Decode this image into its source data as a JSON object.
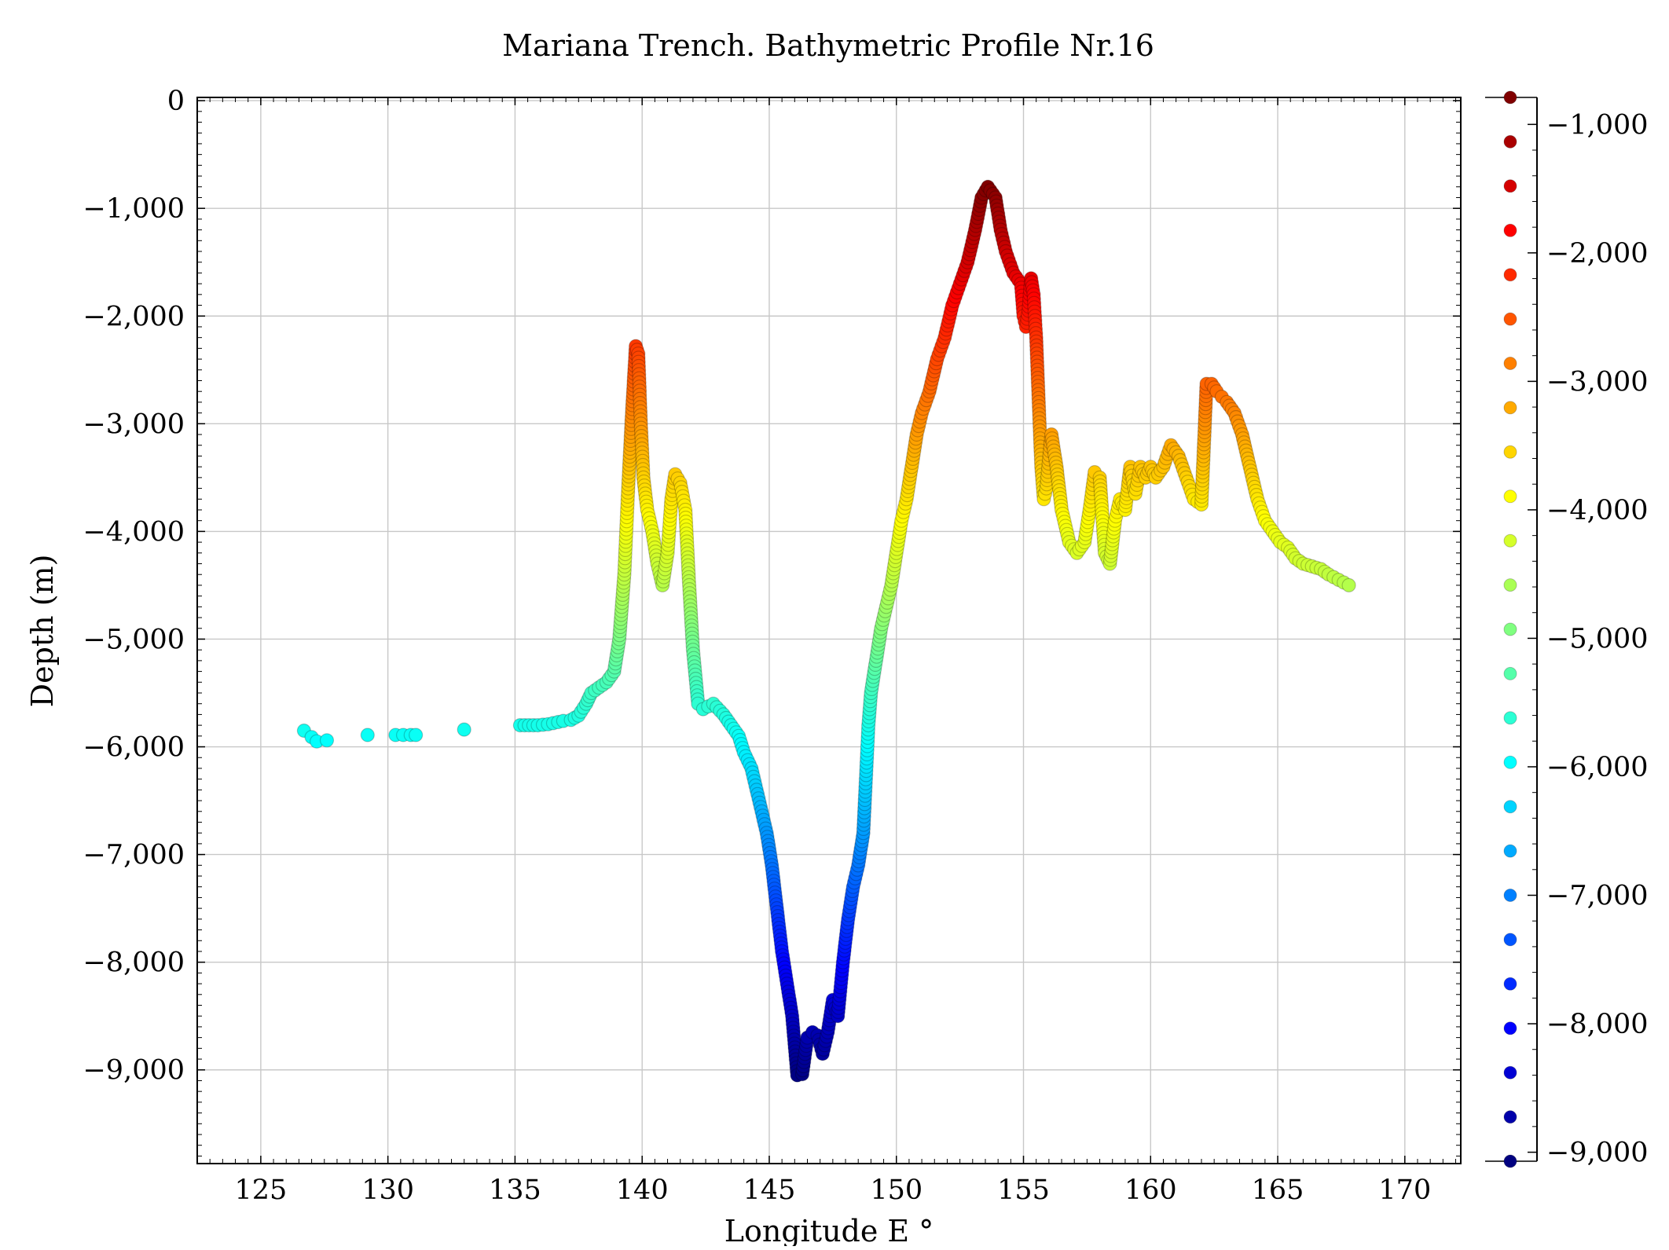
{
  "chart_data": {
    "type": "scatter",
    "title": "Mariana Trench. Bathymetric Profile Nr.16",
    "xlabel": "Longitude E °",
    "ylabel": "Depth (m)",
    "xlim": [
      122.5,
      172.2
    ],
    "ylim": [
      -9870,
      30
    ],
    "xticks": [
      125,
      130,
      135,
      140,
      145,
      150,
      155,
      160,
      165,
      170
    ],
    "xtick_labels": [
      "125",
      "130",
      "135",
      "140",
      "145",
      "150",
      "155",
      "160",
      "165",
      "170"
    ],
    "yticks": [
      0,
      -1000,
      -2000,
      -3000,
      -4000,
      -5000,
      -6000,
      -7000,
      -8000,
      -9000
    ],
    "ytick_labels": [
      "0",
      "−1,000",
      "−2,000",
      "−3,000",
      "−4,000",
      "−5,000",
      "−6,000",
      "−7,000",
      "−8,000",
      "−9,000"
    ],
    "grid": true,
    "colormap": "jet",
    "color_range": [
      -9070,
      -790
    ],
    "colorbar_ticks": [
      -1000,
      -2000,
      -3000,
      -4000,
      -5000,
      -6000,
      -7000,
      -8000,
      -9000
    ],
    "colorbar_tick_labels": [
      "−1,000",
      "−2,000",
      "−3,000",
      "−4,000",
      "−5,000",
      "−6,000",
      "−7,000",
      "−8,000",
      "−9,000"
    ],
    "colorbar_position": "right",
    "x": [
      126.7,
      127.0,
      127.2,
      127.6,
      129.2,
      130.3,
      130.6,
      130.9,
      131.1,
      133.0,
      135.2,
      135.9,
      136.3,
      136.9,
      137.2,
      137.5,
      137.8,
      138.0,
      138.3,
      138.6,
      138.9,
      139.1,
      139.3,
      139.45,
      139.6,
      139.75,
      139.85,
      139.95,
      140.05,
      140.2,
      140.4,
      140.6,
      140.8,
      141.0,
      141.15,
      141.3,
      141.5,
      141.7,
      141.85,
      142.0,
      142.2,
      142.4,
      142.8,
      143.2,
      143.5,
      143.8,
      144.0,
      144.3,
      144.5,
      144.7,
      144.9,
      145.1,
      145.3,
      145.5,
      145.7,
      145.9,
      146.1,
      146.3,
      146.5,
      146.7,
      146.9,
      147.1,
      147.3,
      147.5,
      147.7,
      147.9,
      148.1,
      148.3,
      148.5,
      148.7,
      148.8,
      148.9,
      149.0,
      149.2,
      149.4,
      149.6,
      149.8,
      150.0,
      150.2,
      150.4,
      150.6,
      150.8,
      151.0,
      151.3,
      151.6,
      151.9,
      152.2,
      152.5,
      152.8,
      153.1,
      153.35,
      153.6,
      153.9,
      154.1,
      154.3,
      154.6,
      154.9,
      155.0,
      155.1,
      155.2,
      155.3,
      155.4,
      155.5,
      155.6,
      155.7,
      155.8,
      155.9,
      156.1,
      156.3,
      156.5,
      156.8,
      157.1,
      157.4,
      157.6,
      157.8,
      158.0,
      158.2,
      158.4,
      158.6,
      158.8,
      159.0,
      159.2,
      159.4,
      159.6,
      159.8,
      160.0,
      160.2,
      160.5,
      160.8,
      161.1,
      161.4,
      161.7,
      162.0,
      162.2,
      162.4,
      162.6,
      162.8,
      163.0,
      163.3,
      163.6,
      163.9,
      164.2,
      164.5,
      164.8,
      165.1,
      165.4,
      165.7,
      166.0,
      166.7,
      167.0,
      167.4,
      167.8
    ],
    "values": [
      -5850,
      -5910,
      -5950,
      -5940,
      -5890,
      -5890,
      -5890,
      -5890,
      -5890,
      -5840,
      -5800,
      -5800,
      -5790,
      -5760,
      -5750,
      -5710,
      -5600,
      -5500,
      -5450,
      -5400,
      -5300,
      -5000,
      -4400,
      -3600,
      -2900,
      -2280,
      -2350,
      -3000,
      -3500,
      -3800,
      -4000,
      -4300,
      -4500,
      -4200,
      -3700,
      -3470,
      -3550,
      -3800,
      -4500,
      -5100,
      -5600,
      -5650,
      -5600,
      -5700,
      -5800,
      -5900,
      -6050,
      -6200,
      -6400,
      -6600,
      -6800,
      -7100,
      -7500,
      -7900,
      -8200,
      -8500,
      -9050,
      -9040,
      -8700,
      -8650,
      -8680,
      -8850,
      -8650,
      -8350,
      -8500,
      -8000,
      -7600,
      -7300,
      -7100,
      -6800,
      -6300,
      -5800,
      -5500,
      -5200,
      -4900,
      -4700,
      -4500,
      -4200,
      -3900,
      -3700,
      -3400,
      -3100,
      -2900,
      -2700,
      -2400,
      -2200,
      -1900,
      -1700,
      -1500,
      -1200,
      -900,
      -800,
      -900,
      -1200,
      -1400,
      -1600,
      -1700,
      -2000,
      -2100,
      -1950,
      -1650,
      -1800,
      -2200,
      -2800,
      -3400,
      -3700,
      -3600,
      -3100,
      -3400,
      -3800,
      -4100,
      -4200,
      -4100,
      -3800,
      -3450,
      -3500,
      -4200,
      -4300,
      -3900,
      -3700,
      -3800,
      -3400,
      -3650,
      -3400,
      -3500,
      -3400,
      -3500,
      -3400,
      -3200,
      -3300,
      -3500,
      -3700,
      -3750,
      -2630,
      -2630,
      -2700,
      -2750,
      -2800,
      -2900,
      -3100,
      -3400,
      -3700,
      -3900,
      -4000,
      -4100,
      -4150,
      -4250,
      -4300,
      -4350,
      -4400,
      -4450,
      -4500
    ]
  }
}
